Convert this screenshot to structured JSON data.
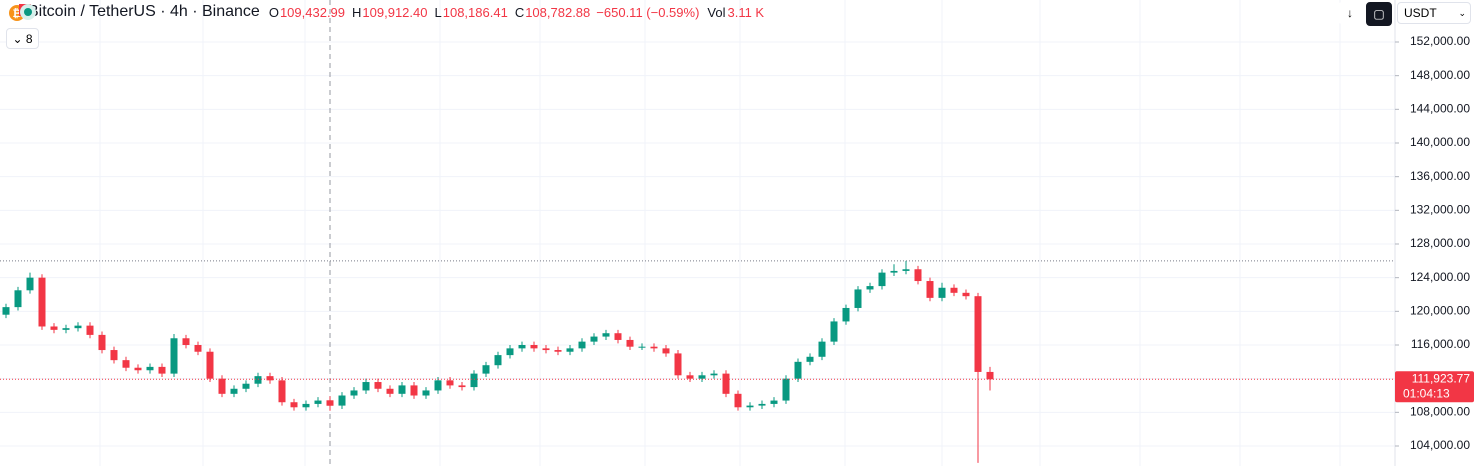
{
  "chart_data": {
    "type": "candlestick",
    "title": "Bitcoin / TetherUS · 4h · Binance",
    "ohlc_legend": [
      {
        "label": "O",
        "value": "109,432.99"
      },
      {
        "label": "H",
        "value": "109,912.40"
      },
      {
        "label": "L",
        "value": "108,186.41"
      },
      {
        "label": "C",
        "value": "108,782.88"
      }
    ],
    "change": "−650.11 (−0.59%)",
    "volume": {
      "label": "Vol",
      "value": "3.11 K"
    },
    "indicators_count": "8",
    "currency": "USDT",
    "up_color": "#089981",
    "down_color": "#f23645",
    "open": [
      119600,
      120500,
      122500,
      124000,
      118200,
      117800,
      118000,
      118300,
      117200,
      115400,
      114200,
      113300,
      113000,
      113400,
      112600,
      116800,
      116000,
      115200,
      112000,
      110200,
      110800,
      111400,
      112300,
      111800,
      109200,
      108600,
      109000,
      109432.99,
      108800,
      110000,
      110600,
      111600,
      110800,
      110200,
      111200,
      110000,
      110600,
      111800,
      111200,
      111000,
      112600,
      113600,
      114800,
      115600,
      116000,
      115600,
      115400,
      115200,
      115600,
      116400,
      117000,
      117400,
      116600,
      115800,
      115800,
      115600,
      115000,
      112400,
      112000,
      112400,
      112600,
      110200,
      108600,
      108800,
      109000,
      109400,
      112000,
      114000,
      114600,
      116400,
      118800,
      120400,
      122600,
      123000,
      124600,
      124800,
      125000,
      123600,
      121600,
      122800,
      122200,
      121800,
      112800
    ],
    "high": [
      120900,
      122900,
      124600,
      124400,
      118600,
      118400,
      118700,
      118700,
      117600,
      115800,
      114600,
      113700,
      113800,
      113800,
      117300,
      117200,
      116400,
      115600,
      112400,
      111200,
      111800,
      112700,
      112700,
      112200,
      109600,
      109400,
      109800,
      109912.4,
      110400,
      111000,
      112000,
      112000,
      111200,
      111600,
      111600,
      111000,
      112200,
      112200,
      111600,
      113000,
      114000,
      115200,
      116000,
      116400,
      116400,
      116000,
      115800,
      116000,
      116800,
      117400,
      117800,
      117800,
      117000,
      116200,
      116200,
      116000,
      115400,
      112800,
      112800,
      113000,
      113000,
      110600,
      109200,
      109400,
      109800,
      112400,
      114400,
      115000,
      116800,
      119200,
      120800,
      123000,
      123400,
      125000,
      125600,
      126000,
      125400,
      124000,
      123400,
      123200,
      122600,
      122200,
      113400
    ],
    "low": [
      119200,
      120100,
      122100,
      117800,
      117400,
      117400,
      117600,
      116800,
      115000,
      113800,
      112900,
      112600,
      112600,
      112200,
      112200,
      115600,
      114800,
      111600,
      109800,
      109800,
      110400,
      111000,
      111400,
      108800,
      108200,
      108200,
      108600,
      108186.41,
      108400,
      109600,
      110200,
      110400,
      109800,
      109800,
      109600,
      109600,
      110200,
      110800,
      110600,
      110600,
      112200,
      113200,
      114400,
      115200,
      115200,
      115000,
      114800,
      114800,
      115200,
      116000,
      116600,
      116200,
      115400,
      115400,
      115200,
      114600,
      112000,
      111600,
      111600,
      112000,
      109800,
      108200,
      108200,
      108400,
      108600,
      109000,
      111600,
      113600,
      114200,
      116000,
      118400,
      120000,
      122200,
      122600,
      124200,
      124400,
      123200,
      121200,
      121200,
      121800,
      121400,
      102000,
      110600
    ],
    "close": [
      120500,
      122500,
      124000,
      118200,
      117800,
      118000,
      118300,
      117200,
      115400,
      114200,
      113300,
      113000,
      113400,
      112600,
      116800,
      116000,
      115200,
      112000,
      110200,
      110800,
      111400,
      112300,
      111800,
      109200,
      108600,
      109000,
      109400,
      108782.88,
      110000,
      110600,
      111600,
      110800,
      110200,
      111200,
      110000,
      110600,
      111800,
      111200,
      111000,
      112600,
      113600,
      114800,
      115600,
      116000,
      115600,
      115400,
      115200,
      115600,
      116400,
      117000,
      117400,
      116600,
      115800,
      115800,
      115600,
      115000,
      112400,
      112000,
      112400,
      112600,
      110200,
      108600,
      108800,
      109000,
      109400,
      112000,
      114000,
      114600,
      116400,
      118800,
      120400,
      122600,
      123000,
      124600,
      124800,
      125000,
      123600,
      121600,
      122800,
      122200,
      121800,
      112800,
      111923.77
    ],
    "ylim": [
      101624,
      156990
    ],
    "yticks": [
      {
        "value": 104000,
        "label": "104,000.00"
      },
      {
        "value": 108000,
        "label": "108,000.00"
      },
      {
        "value": 112000,
        "label": "112,000.00"
      },
      {
        "value": 116000,
        "label": "116,000.00"
      },
      {
        "value": 120000,
        "label": "120,000.00"
      },
      {
        "value": 124000,
        "label": "124,000.00"
      },
      {
        "value": 128000,
        "label": "128,000.00"
      },
      {
        "value": 132000,
        "label": "132,000.00"
      },
      {
        "value": 136000,
        "label": "136,000.00"
      },
      {
        "value": 140000,
        "label": "140,000.00"
      },
      {
        "value": 144000,
        "label": "144,000.00"
      },
      {
        "value": 148000,
        "label": "148,000.00"
      },
      {
        "value": 152000,
        "label": "152,000.00"
      }
    ],
    "reference_line": 126000,
    "last_price": {
      "value": 111923.77,
      "label": "111,923.77",
      "countdown": "01:04:13"
    },
    "grid": true
  }
}
